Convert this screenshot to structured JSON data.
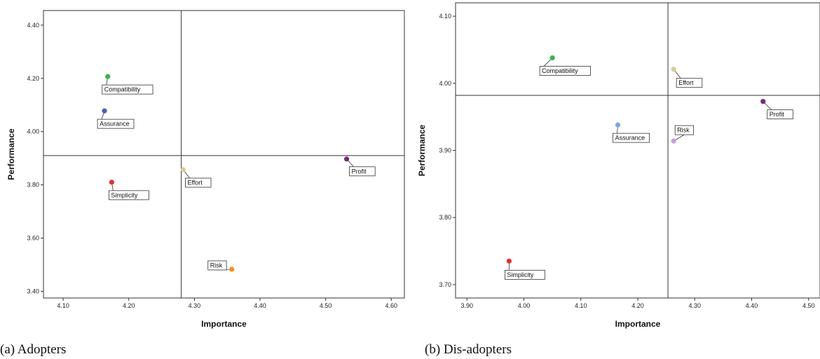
{
  "chart_data": [
    {
      "type": "scatter",
      "caption": "(a) Adopters",
      "xlabel": "Importance",
      "ylabel": "Performance",
      "xlim": [
        4.07,
        4.62
      ],
      "ylim": [
        3.375,
        4.455
      ],
      "xticks": [
        "4.10",
        "4.20",
        "4.30",
        "4.40",
        "4.50",
        "4.60"
      ],
      "yticks": [
        "3.40",
        "3.60",
        "3.80",
        "4.00",
        "4.20",
        "4.40"
      ],
      "ref_x": 4.28,
      "ref_y": 3.91,
      "points": [
        {
          "label": "Compatibility",
          "x": 4.168,
          "y": 4.207,
          "color": "#3cb44b"
        },
        {
          "label": "Assurance",
          "x": 4.163,
          "y": 4.078,
          "color": "#4a60b0"
        },
        {
          "label": "Simplicity",
          "x": 4.174,
          "y": 3.81,
          "color": "#e03030"
        },
        {
          "label": "Effort",
          "x": 4.283,
          "y": 3.857,
          "color": "#d8cc9a"
        },
        {
          "label": "Profit",
          "x": 4.532,
          "y": 3.897,
          "color": "#7b2a7b"
        },
        {
          "label": "Risk",
          "x": 4.357,
          "y": 3.483,
          "color": "#f09020"
        }
      ]
    },
    {
      "type": "scatter",
      "caption": "(b) Dis-adopters",
      "xlabel": "Importance",
      "ylabel": "Performance",
      "xlim": [
        3.88,
        4.52
      ],
      "ylim": [
        3.68,
        4.12
      ],
      "xticks": [
        "3.90",
        "4.00",
        "4.10",
        "4.20",
        "4.30",
        "4.40",
        "4.50"
      ],
      "yticks": [
        "3.70",
        "3.80",
        "3.90",
        "4.00",
        "4.10"
      ],
      "ref_x": 4.253,
      "ref_y": 3.982,
      "points": [
        {
          "label": "Compatibility",
          "x": 4.05,
          "y": 4.038,
          "color": "#3cb44b"
        },
        {
          "label": "Effort",
          "x": 4.263,
          "y": 4.021,
          "color": "#d8cc9a"
        },
        {
          "label": "Profit",
          "x": 4.42,
          "y": 3.973,
          "color": "#7b2a7b"
        },
        {
          "label": "Assurance",
          "x": 4.165,
          "y": 3.938,
          "color": "#7fa8d8"
        },
        {
          "label": "Risk",
          "x": 4.263,
          "y": 3.914,
          "color": "#c2a0d8"
        },
        {
          "label": "Simplicity",
          "x": 3.974,
          "y": 3.735,
          "color": "#e03030"
        }
      ]
    }
  ]
}
